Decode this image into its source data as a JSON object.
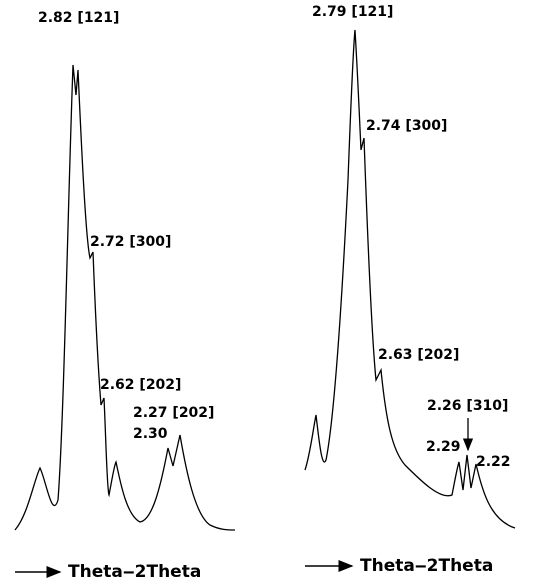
{
  "panels": [
    {
      "labels": [
        "2.82 [121]",
        "2.72 [300]",
        "2.62 [202]",
        "2.27 [202]",
        "2.30"
      ],
      "axis_label": "Theta‒2Theta"
    },
    {
      "labels": [
        "2.79 [121]",
        "2.74 [300]",
        "2.63 [202]",
        "2.26 [310]",
        "2.29",
        "2.22"
      ],
      "axis_label": "Theta‒2Theta"
    }
  ]
}
